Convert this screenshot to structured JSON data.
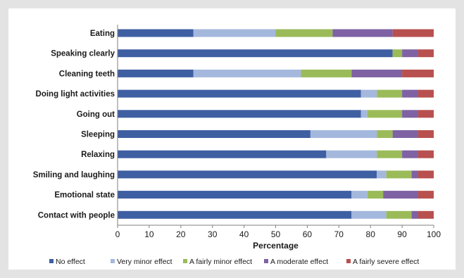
{
  "chart_data": {
    "type": "bar",
    "orientation": "horizontal",
    "stacked": true,
    "title": "",
    "xlabel": "Percentage",
    "ylabel": "",
    "xlim": [
      0,
      100
    ],
    "xticks": [
      "0",
      "10",
      "20",
      "30",
      "40",
      "50",
      "60",
      "70",
      "80",
      "90",
      "100"
    ],
    "legend_position": "bottom",
    "grid": false,
    "categories": [
      "Eating",
      "Speaking clearly",
      "Cleaning teeth",
      "Doing light activities",
      "Going out",
      "Sleeping",
      "Relaxing",
      "Smiling and laughing",
      "Emotional state",
      "Contact with people"
    ],
    "series": [
      {
        "name": "No effect",
        "color": "#3f5fa3",
        "values": [
          24,
          87,
          24,
          77,
          77,
          61,
          66,
          82,
          74,
          74
        ]
      },
      {
        "name": "Very minor effect",
        "color": "#a4b8dd",
        "values": [
          26,
          0,
          34,
          5,
          2,
          21,
          16,
          3,
          5,
          11
        ]
      },
      {
        "name": "A fairly minor effect",
        "color": "#9bbb59",
        "values": [
          18,
          3,
          16,
          8,
          11,
          5,
          8,
          8,
          5,
          8
        ]
      },
      {
        "name": "A moderate effect",
        "color": "#7e62a3",
        "values": [
          19,
          5,
          16,
          5,
          5,
          8,
          5,
          2,
          11,
          2
        ]
      },
      {
        "name": "A fairly severe effect",
        "color": "#b8504f",
        "values": [
          13,
          5,
          10,
          5,
          5,
          5,
          5,
          5,
          5,
          5
        ]
      }
    ]
  }
}
